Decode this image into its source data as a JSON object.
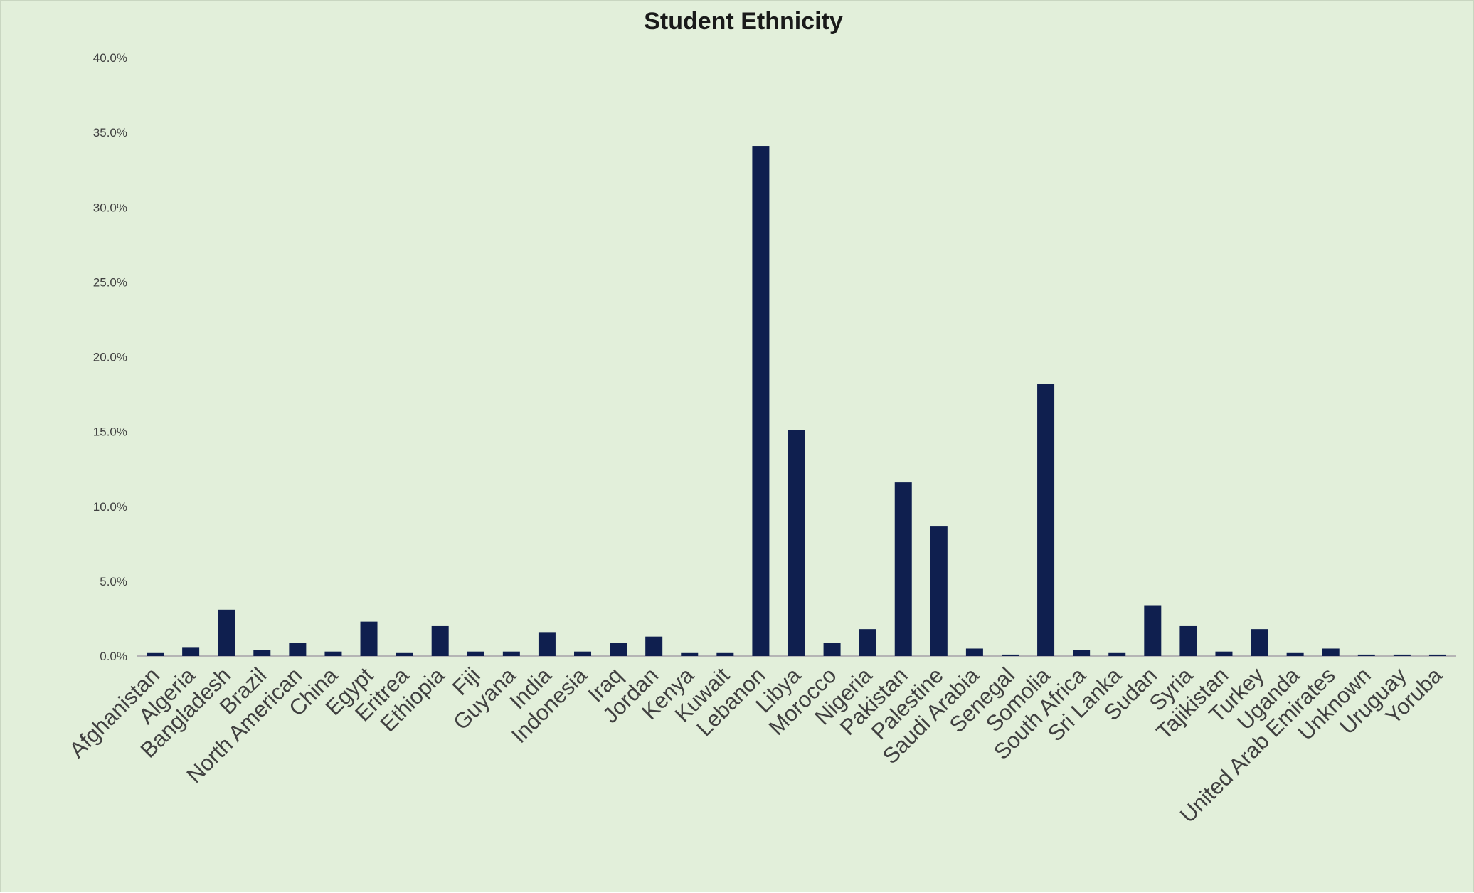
{
  "chart_data": {
    "type": "bar",
    "title": "Student Ethnicity",
    "xlabel": "",
    "ylabel": "",
    "ylim": [
      0,
      40
    ],
    "grid": false,
    "legend": "none",
    "bar_color": "#0f1f4f",
    "background_color": "#e2efda",
    "yticks": [
      "0.0%",
      "5.0%",
      "10.0%",
      "15.0%",
      "20.0%",
      "25.0%",
      "30.0%",
      "35.0%",
      "40.0%"
    ],
    "categories": [
      "Afghanistan",
      "Algeria",
      "Bangladesh",
      "Brazil",
      "North American",
      "China",
      "Egypt",
      "Eritrea",
      "Ethiopia",
      "Fiji",
      "Guyana",
      "India",
      "Indonesia",
      "Iraq",
      "Jordan",
      "Kenya",
      "Kuwait",
      "Lebanon",
      "Libya",
      "Morocco",
      "Nigeria",
      "Pakistan",
      "Palestine",
      "Saudi Arabia",
      "Senegal",
      "Somolia",
      "South Africa",
      "Sri Lanka",
      "Sudan",
      "Syria",
      "Tajikistan",
      "Turkey",
      "Uganda",
      "United Arab Emirates",
      "Unknown",
      "Uruguay",
      "Yoruba"
    ],
    "values": [
      0.2,
      0.6,
      3.1,
      0.4,
      0.9,
      0.3,
      2.3,
      0.2,
      2.0,
      0.3,
      0.3,
      1.6,
      0.3,
      0.9,
      1.3,
      0.2,
      0.2,
      34.1,
      15.1,
      0.9,
      1.8,
      11.6,
      8.7,
      0.5,
      0.1,
      18.2,
      0.4,
      0.2,
      3.4,
      2.0,
      0.3,
      1.8,
      0.2,
      0.5,
      0.1,
      0.1,
      0.1
    ]
  }
}
